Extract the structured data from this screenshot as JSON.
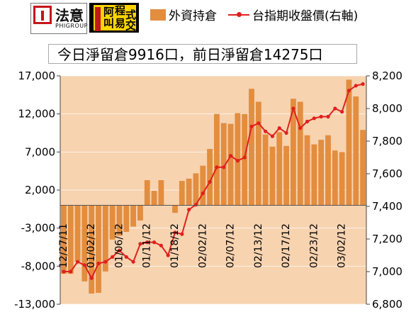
{
  "logos": {
    "left_name": "法意",
    "left_sub": "PHIGROUP",
    "right_text": [
      "阿",
      "叫",
      "程",
      "式",
      "易",
      "交"
    ]
  },
  "legend": {
    "bar_label": "外資持倉",
    "line_label": "台指期收盤價(右軸)"
  },
  "banner": "今日淨留倉9916口，前日淨留倉14275口",
  "colors": {
    "bar": "#e38d3f",
    "line": "#e0201d",
    "plot_bg": "#f7d3b0"
  },
  "chart_data": {
    "type": "bar",
    "left_axis": {
      "ticks": [
        "17,000",
        "12,000",
        "7,000",
        "2,000",
        "-3,000",
        "-8,000",
        "-13,000"
      ],
      "ylim": [
        -13000,
        17000
      ]
    },
    "right_axis": {
      "ticks": [
        "8,200",
        "8,000",
        "7,800",
        "7,600",
        "7,400",
        "7,200",
        "7,000",
        "6,800"
      ],
      "ylim": [
        6800,
        8200
      ]
    },
    "x_tick_labels": [
      "12/27/11",
      "01/02/12",
      "01/06/12",
      "01/11/12",
      "01/18/12",
      "02/02/12",
      "02/07/12",
      "02/13/12",
      "02/17/12",
      "02/23/12",
      "03/02/12"
    ],
    "x_tick_positions": [
      0,
      4,
      8,
      12,
      16,
      20,
      24,
      28,
      32,
      36,
      40
    ],
    "series": [
      {
        "name": "外資持倉",
        "type": "bar",
        "values": [
          -9000,
          -9000,
          -7400,
          -10000,
          -11600,
          -11500,
          -8700,
          -4500,
          -4000,
          -3500,
          -2800,
          -2000,
          3300,
          1900,
          3300,
          0,
          -1000,
          3200,
          3500,
          4200,
          5200,
          7400,
          12000,
          10800,
          10700,
          12100,
          12000,
          15300,
          13600,
          9300,
          7700,
          9600,
          7800,
          14000,
          13600,
          9200,
          8000,
          8600,
          9200,
          7200,
          7000,
          16500,
          14300,
          9900
        ]
      },
      {
        "name": "台指期收盤價(右軸)",
        "type": "line",
        "values": [
          7000,
          7000,
          7060,
          7040,
          6960,
          7050,
          7060,
          7090,
          7130,
          7090,
          7060,
          7170,
          7180,
          7180,
          7160,
          7100,
          7240,
          7230,
          7380,
          7410,
          7480,
          7550,
          7640,
          7640,
          7710,
          7680,
          7700,
          7890,
          7910,
          7860,
          7830,
          7880,
          7850,
          8000,
          7880,
          7920,
          7940,
          7950,
          7950,
          8000,
          7980,
          8110,
          8140,
          8150
        ]
      }
    ]
  }
}
